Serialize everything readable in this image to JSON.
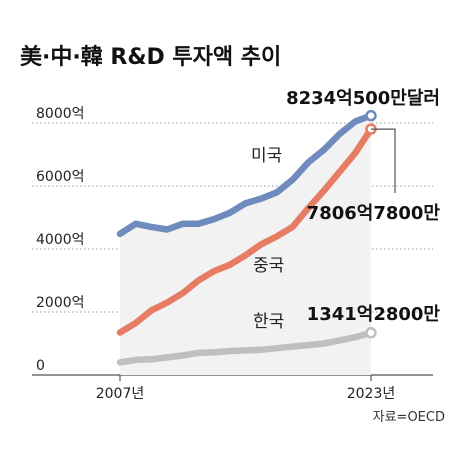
{
  "title": "美·中·韓 R&D 투자액 추이",
  "source": "자료=OECD",
  "colors": {
    "us": "#6f8bbd",
    "china": "#e57c63",
    "korea": "#bfbfbf",
    "area": "#f2f2f2"
  },
  "chart_data": {
    "type": "line",
    "x": [
      2007,
      2008,
      2009,
      2010,
      2011,
      2012,
      2013,
      2014,
      2015,
      2016,
      2017,
      2018,
      2019,
      2020,
      2021,
      2022,
      2023
    ],
    "xtick_labels": [
      "2007년",
      "2023년"
    ],
    "ytick_labels": [
      "8000억",
      "6000억",
      "4000억",
      "2000억",
      "0"
    ],
    "ytick_values": [
      8000,
      6000,
      4000,
      2000,
      0
    ],
    "ylim": [
      0,
      8000
    ],
    "grid": "horizontal dotted",
    "series": [
      {
        "key": "us",
        "name": "미국",
        "values": [
          4480,
          4800,
          4700,
          4620,
          4800,
          4800,
          4950,
          5150,
          5450,
          5600,
          5800,
          6200,
          6750,
          7150,
          7650,
          8050,
          8234
        ]
      },
      {
        "key": "china",
        "name": "중국",
        "values": [
          1350,
          1650,
          2050,
          2300,
          2600,
          3000,
          3300,
          3500,
          3800,
          4150,
          4400,
          4700,
          5300,
          5850,
          6450,
          7050,
          7806
        ]
      },
      {
        "key": "korea",
        "name": "한국",
        "values": [
          400,
          480,
          500,
          560,
          620,
          700,
          720,
          760,
          780,
          800,
          850,
          900,
          950,
          1000,
          1100,
          1200,
          1341
        ]
      }
    ],
    "end_labels": {
      "us": "8234억500만달러",
      "china": "7806억7800만",
      "korea": "1341억2800만"
    }
  }
}
